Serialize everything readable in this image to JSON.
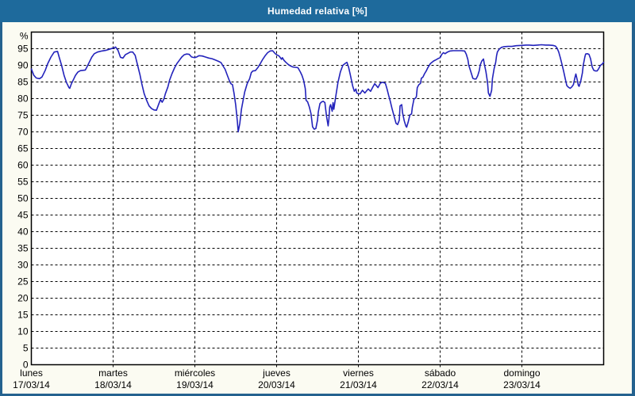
{
  "window": {
    "title": "Humedad relativa [%]"
  },
  "colors": {
    "titlebar_bg": "#1e6a9c",
    "titlebar_text": "#ffffff",
    "window_border": "#24628f",
    "window_bg": "#fbfbf2",
    "plot_bg": "#ffffff",
    "plot_border": "#000000",
    "gridline": "#000000",
    "axis_text": "#000000",
    "line": "#2323bb"
  },
  "chart_data": {
    "type": "line",
    "title": "Humedad relativa [%]",
    "xlabel": "",
    "ylabel": "%",
    "ylim": [
      0,
      100
    ],
    "yticks": [
      0,
      5,
      10,
      15,
      20,
      25,
      30,
      35,
      40,
      45,
      50,
      55,
      60,
      65,
      70,
      75,
      80,
      85,
      90,
      95
    ],
    "grid": true,
    "legend": "none",
    "x_days": [
      {
        "label": "lunes",
        "date": "17/03/14"
      },
      {
        "label": "martes",
        "date": "18/03/14"
      },
      {
        "label": "miércoles",
        "date": "19/03/14"
      },
      {
        "label": "jueves",
        "date": "20/03/14"
      },
      {
        "label": "viernes",
        "date": "21/03/14"
      },
      {
        "label": "sábado",
        "date": "22/03/14"
      },
      {
        "label": "domingo",
        "date": "23/03/14"
      }
    ],
    "series": [
      {
        "name": "Humedad relativa [%]",
        "x_unit": "days from 17/03/14 00:00",
        "points": [
          [
            0.0,
            88.9
          ],
          [
            0.03,
            87.0
          ],
          [
            0.06,
            86.2
          ],
          [
            0.1,
            86.0
          ],
          [
            0.13,
            86.5
          ],
          [
            0.17,
            88.5
          ],
          [
            0.2,
            90.5
          ],
          [
            0.24,
            92.5
          ],
          [
            0.28,
            94.0
          ],
          [
            0.32,
            94.2
          ],
          [
            0.34,
            92.5
          ],
          [
            0.37,
            90.0
          ],
          [
            0.4,
            87.0
          ],
          [
            0.43,
            84.8
          ],
          [
            0.46,
            83.3
          ],
          [
            0.47,
            83.1
          ],
          [
            0.49,
            84.5
          ],
          [
            0.52,
            86.0
          ],
          [
            0.54,
            87.0
          ],
          [
            0.57,
            88.0
          ],
          [
            0.6,
            88.4
          ],
          [
            0.63,
            88.5
          ],
          [
            0.66,
            88.6
          ],
          [
            0.68,
            89.5
          ],
          [
            0.71,
            91.0
          ],
          [
            0.74,
            92.5
          ],
          [
            0.77,
            93.5
          ],
          [
            0.81,
            94.0
          ],
          [
            0.86,
            94.3
          ],
          [
            0.91,
            94.5
          ],
          [
            0.95,
            94.8
          ],
          [
            1.0,
            95.2
          ],
          [
            1.03,
            95.5
          ],
          [
            1.06,
            94.5
          ],
          [
            1.09,
            92.4
          ],
          [
            1.12,
            92.2
          ],
          [
            1.15,
            93.2
          ],
          [
            1.18,
            93.6
          ],
          [
            1.21,
            94.0
          ],
          [
            1.24,
            94.0
          ],
          [
            1.27,
            93.0
          ],
          [
            1.3,
            90.0
          ],
          [
            1.33,
            87.0
          ],
          [
            1.35,
            84.5
          ],
          [
            1.38,
            81.5
          ],
          [
            1.41,
            79.5
          ],
          [
            1.44,
            77.8
          ],
          [
            1.47,
            77.0
          ],
          [
            1.5,
            76.6
          ],
          [
            1.53,
            76.5
          ],
          [
            1.56,
            78.5
          ],
          [
            1.58,
            79.7
          ],
          [
            1.6,
            78.9
          ],
          [
            1.62,
            79.8
          ],
          [
            1.64,
            81.5
          ],
          [
            1.67,
            83.5
          ],
          [
            1.69,
            85.5
          ],
          [
            1.72,
            87.5
          ],
          [
            1.75,
            89.2
          ],
          [
            1.78,
            90.5
          ],
          [
            1.81,
            91.5
          ],
          [
            1.84,
            92.5
          ],
          [
            1.87,
            93.2
          ],
          [
            1.9,
            93.4
          ],
          [
            1.93,
            93.3
          ],
          [
            1.96,
            92.5
          ],
          [
            2.0,
            92.3
          ],
          [
            2.02,
            92.5
          ],
          [
            2.05,
            92.9
          ],
          [
            2.09,
            92.8
          ],
          [
            2.13,
            92.5
          ],
          [
            2.17,
            92.2
          ],
          [
            2.21,
            92.0
          ],
          [
            2.25,
            91.6
          ],
          [
            2.29,
            91.2
          ],
          [
            2.32,
            90.8
          ],
          [
            2.34,
            90.0
          ],
          [
            2.37,
            88.8
          ],
          [
            2.4,
            86.8
          ],
          [
            2.42,
            85.5
          ],
          [
            2.44,
            84.5
          ],
          [
            2.46,
            84.2
          ],
          [
            2.48,
            81.5
          ],
          [
            2.5,
            78.0
          ],
          [
            2.52,
            73.0
          ],
          [
            2.53,
            70.0
          ],
          [
            2.55,
            72.5
          ],
          [
            2.57,
            76.8
          ],
          [
            2.59,
            79.5
          ],
          [
            2.61,
            82.0
          ],
          [
            2.64,
            84.5
          ],
          [
            2.67,
            86.0
          ],
          [
            2.69,
            87.8
          ],
          [
            2.71,
            88.3
          ],
          [
            2.74,
            88.4
          ],
          [
            2.77,
            89.3
          ],
          [
            2.8,
            90.5
          ],
          [
            2.83,
            91.8
          ],
          [
            2.86,
            92.9
          ],
          [
            2.89,
            93.8
          ],
          [
            2.92,
            94.3
          ],
          [
            2.95,
            94.4
          ],
          [
            2.98,
            93.6
          ],
          [
            3.0,
            93.2
          ],
          [
            3.03,
            92.8
          ],
          [
            3.06,
            91.8
          ],
          [
            3.07,
            92.3
          ],
          [
            3.09,
            91.5
          ],
          [
            3.11,
            91.0
          ],
          [
            3.14,
            90.3
          ],
          [
            3.17,
            89.8
          ],
          [
            3.2,
            89.5
          ],
          [
            3.23,
            89.4
          ],
          [
            3.26,
            89.3
          ],
          [
            3.29,
            88.0
          ],
          [
            3.31,
            87.0
          ],
          [
            3.33,
            85.5
          ],
          [
            3.35,
            83.0
          ],
          [
            3.36,
            79.5
          ],
          [
            3.38,
            79.0
          ],
          [
            3.4,
            77.5
          ],
          [
            3.42,
            75.5
          ],
          [
            3.44,
            71.5
          ],
          [
            3.46,
            70.8
          ],
          [
            3.48,
            71.0
          ],
          [
            3.5,
            73.5
          ],
          [
            3.51,
            76.0
          ],
          [
            3.53,
            78.5
          ],
          [
            3.55,
            79.0
          ],
          [
            3.57,
            79.2
          ],
          [
            3.59,
            78.8
          ],
          [
            3.61,
            74.8
          ],
          [
            3.63,
            71.8
          ],
          [
            3.64,
            74.0
          ],
          [
            3.65,
            77.5
          ],
          [
            3.66,
            78.2
          ],
          [
            3.68,
            76.2
          ],
          [
            3.69,
            78.8
          ],
          [
            3.7,
            76.8
          ],
          [
            3.72,
            80.2
          ],
          [
            3.75,
            84.9
          ],
          [
            3.78,
            88.0
          ],
          [
            3.81,
            90.0
          ],
          [
            3.84,
            90.6
          ],
          [
            3.86,
            90.9
          ],
          [
            3.88,
            89.5
          ],
          [
            3.9,
            87.3
          ],
          [
            3.93,
            83.8
          ],
          [
            3.95,
            82.2
          ],
          [
            3.97,
            82.9
          ],
          [
            3.98,
            81.7
          ],
          [
            4.0,
            81.5
          ],
          [
            4.02,
            81.4
          ],
          [
            4.05,
            82.5
          ],
          [
            4.08,
            81.7
          ],
          [
            4.12,
            82.9
          ],
          [
            4.15,
            82.2
          ],
          [
            4.18,
            83.6
          ],
          [
            4.2,
            84.5
          ],
          [
            4.24,
            83.3
          ],
          [
            4.27,
            84.7
          ],
          [
            4.3,
            84.9
          ],
          [
            4.33,
            84.6
          ],
          [
            4.35,
            82.9
          ],
          [
            4.37,
            81.0
          ],
          [
            4.39,
            79.2
          ],
          [
            4.41,
            77.2
          ],
          [
            4.43,
            75.3
          ],
          [
            4.46,
            72.6
          ],
          [
            4.48,
            72.2
          ],
          [
            4.5,
            73.5
          ],
          [
            4.51,
            77.8
          ],
          [
            4.53,
            78.2
          ],
          [
            4.54,
            75.8
          ],
          [
            4.56,
            73.4
          ],
          [
            4.58,
            71.8
          ],
          [
            4.59,
            71.4
          ],
          [
            4.61,
            73.0
          ],
          [
            4.63,
            75.1
          ],
          [
            4.65,
            75.4
          ],
          [
            4.66,
            77.4
          ],
          [
            4.68,
            79.8
          ],
          [
            4.7,
            80.2
          ],
          [
            4.71,
            80.6
          ],
          [
            4.72,
            83.3
          ],
          [
            4.74,
            84.2
          ],
          [
            4.76,
            84.6
          ],
          [
            4.77,
            86.1
          ],
          [
            4.79,
            86.5
          ],
          [
            4.81,
            87.5
          ],
          [
            4.83,
            88.3
          ],
          [
            4.85,
            89.3
          ],
          [
            4.88,
            90.5
          ],
          [
            4.92,
            91.3
          ],
          [
            4.95,
            91.7
          ],
          [
            4.98,
            92.1
          ],
          [
            5.0,
            92.3
          ],
          [
            5.02,
            93.3
          ],
          [
            5.04,
            93.8
          ],
          [
            5.06,
            93.5
          ],
          [
            5.09,
            94.0
          ],
          [
            5.12,
            94.3
          ],
          [
            5.16,
            94.4
          ],
          [
            5.21,
            94.4
          ],
          [
            5.26,
            94.4
          ],
          [
            5.3,
            94.3
          ],
          [
            5.32,
            93.3
          ],
          [
            5.34,
            91.7
          ],
          [
            5.35,
            90.1
          ],
          [
            5.37,
            88.5
          ],
          [
            5.39,
            86.9
          ],
          [
            5.4,
            86.1
          ],
          [
            5.42,
            85.9
          ],
          [
            5.44,
            85.9
          ],
          [
            5.46,
            86.9
          ],
          [
            5.48,
            88.5
          ],
          [
            5.49,
            90.1
          ],
          [
            5.51,
            91.3
          ],
          [
            5.53,
            91.9
          ],
          [
            5.54,
            90.5
          ],
          [
            5.56,
            88.1
          ],
          [
            5.58,
            84.9
          ],
          [
            5.59,
            81.7
          ],
          [
            5.61,
            80.7
          ],
          [
            5.63,
            82.5
          ],
          [
            5.64,
            86.0
          ],
          [
            5.66,
            89.0
          ],
          [
            5.68,
            90.9
          ],
          [
            5.69,
            92.9
          ],
          [
            5.7,
            94.0
          ],
          [
            5.72,
            94.8
          ],
          [
            5.75,
            95.4
          ],
          [
            5.78,
            95.6
          ],
          [
            5.83,
            95.7
          ],
          [
            5.88,
            95.7
          ],
          [
            5.93,
            95.9
          ],
          [
            6.0,
            96.0
          ],
          [
            6.05,
            96.1
          ],
          [
            6.09,
            96.1
          ],
          [
            6.14,
            96.0
          ],
          [
            6.19,
            96.1
          ],
          [
            6.24,
            96.2
          ],
          [
            6.29,
            96.1
          ],
          [
            6.33,
            96.1
          ],
          [
            6.38,
            96.0
          ],
          [
            6.41,
            95.8
          ],
          [
            6.43,
            95.2
          ],
          [
            6.45,
            94.0
          ],
          [
            6.47,
            92.3
          ],
          [
            6.49,
            90.3
          ],
          [
            6.51,
            88.3
          ],
          [
            6.53,
            86.0
          ],
          [
            6.55,
            83.9
          ],
          [
            6.57,
            83.4
          ],
          [
            6.59,
            83.1
          ],
          [
            6.61,
            83.5
          ],
          [
            6.63,
            84.2
          ],
          [
            6.65,
            86.5
          ],
          [
            6.66,
            87.4
          ],
          [
            6.68,
            85.3
          ],
          [
            6.69,
            84.0
          ],
          [
            6.7,
            83.7
          ],
          [
            6.72,
            85.3
          ],
          [
            6.74,
            87.7
          ],
          [
            6.75,
            90.0
          ],
          [
            6.77,
            92.5
          ],
          [
            6.78,
            93.4
          ],
          [
            6.8,
            93.5
          ],
          [
            6.82,
            93.3
          ],
          [
            6.84,
            92.0
          ],
          [
            6.86,
            89.5
          ],
          [
            6.88,
            88.5
          ],
          [
            6.9,
            88.3
          ],
          [
            6.92,
            88.3
          ],
          [
            6.94,
            89.0
          ],
          [
            6.96,
            90.0
          ],
          [
            6.98,
            90.3
          ],
          [
            7.0,
            90.9
          ]
        ]
      }
    ]
  }
}
